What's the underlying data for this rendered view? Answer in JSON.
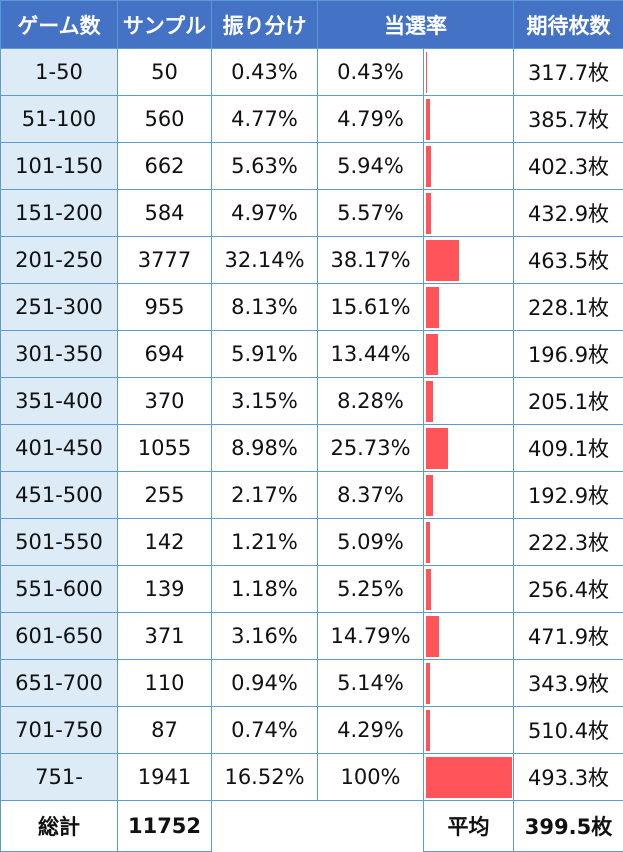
{
  "headers": {
    "games": "ゲーム数",
    "sample": "サンプル",
    "dist": "振り分け",
    "rate": "当選率",
    "expected": "期待枚数"
  },
  "bar_color": "#ff5459",
  "header_color": "#4472c4",
  "rows": [
    {
      "games": "1-50",
      "sample": "50",
      "dist": "0.43%",
      "rate": "0.43%",
      "rate_value": 0.43,
      "expected": "317.7枚"
    },
    {
      "games": "51-100",
      "sample": "560",
      "dist": "4.77%",
      "rate": "4.79%",
      "rate_value": 4.79,
      "expected": "385.7枚"
    },
    {
      "games": "101-150",
      "sample": "662",
      "dist": "5.63%",
      "rate": "5.94%",
      "rate_value": 5.94,
      "expected": "402.3枚"
    },
    {
      "games": "151-200",
      "sample": "584",
      "dist": "4.97%",
      "rate": "5.57%",
      "rate_value": 5.57,
      "expected": "432.9枚"
    },
    {
      "games": "201-250",
      "sample": "3777",
      "dist": "32.14%",
      "rate": "38.17%",
      "rate_value": 38.17,
      "expected": "463.5枚"
    },
    {
      "games": "251-300",
      "sample": "955",
      "dist": "8.13%",
      "rate": "15.61%",
      "rate_value": 15.61,
      "expected": "228.1枚"
    },
    {
      "games": "301-350",
      "sample": "694",
      "dist": "5.91%",
      "rate": "13.44%",
      "rate_value": 13.44,
      "expected": "196.9枚"
    },
    {
      "games": "351-400",
      "sample": "370",
      "dist": "3.15%",
      "rate": "8.28%",
      "rate_value": 8.28,
      "expected": "205.1枚"
    },
    {
      "games": "401-450",
      "sample": "1055",
      "dist": "8.98%",
      "rate": "25.73%",
      "rate_value": 25.73,
      "expected": "409.1枚"
    },
    {
      "games": "451-500",
      "sample": "255",
      "dist": "2.17%",
      "rate": "8.37%",
      "rate_value": 8.37,
      "expected": "192.9枚"
    },
    {
      "games": "501-550",
      "sample": "142",
      "dist": "1.21%",
      "rate": "5.09%",
      "rate_value": 5.09,
      "expected": "222.3枚"
    },
    {
      "games": "551-600",
      "sample": "139",
      "dist": "1.18%",
      "rate": "5.25%",
      "rate_value": 5.25,
      "expected": "256.4枚"
    },
    {
      "games": "601-650",
      "sample": "371",
      "dist": "3.16%",
      "rate": "14.79%",
      "rate_value": 14.79,
      "expected": "471.9枚"
    },
    {
      "games": "651-700",
      "sample": "110",
      "dist": "0.94%",
      "rate": "5.14%",
      "rate_value": 5.14,
      "expected": "343.9枚"
    },
    {
      "games": "701-750",
      "sample": "87",
      "dist": "0.74%",
      "rate": "4.29%",
      "rate_value": 4.29,
      "expected": "510.4枚"
    },
    {
      "games": "751-",
      "sample": "1941",
      "dist": "16.52%",
      "rate": "100%",
      "rate_value": 100,
      "expected": "493.3枚"
    }
  ],
  "footer": {
    "total_label": "総計",
    "total_sample": "11752",
    "avg_label": "平均",
    "avg_expected": "399.5枚"
  }
}
